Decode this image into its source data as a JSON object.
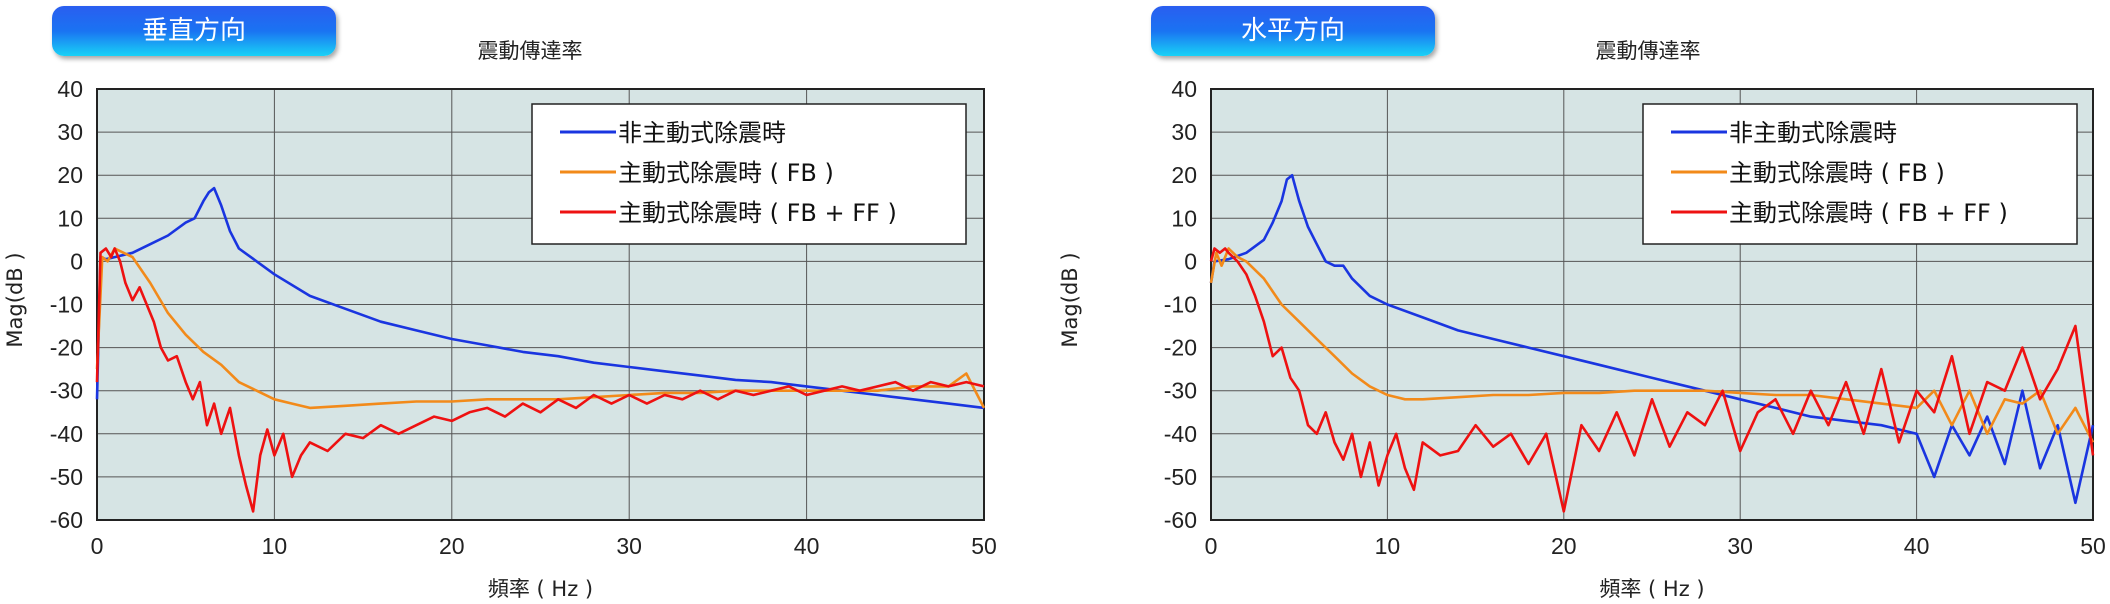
{
  "chart_data": [
    {
      "type": "line",
      "tag": "垂直方向",
      "title": "震動傳達率",
      "xlabel": "頻率 ( Hz )",
      "ylabel": "Mag(dB )",
      "xlim": [
        0,
        50
      ],
      "ylim": [
        -60,
        40
      ],
      "xticks": [
        "0",
        "10",
        "20",
        "30",
        "40",
        "50"
      ],
      "yticks": [
        "40",
        "30",
        "20",
        "10",
        "0",
        "-10",
        "-20",
        "-30",
        "-40",
        "-50",
        "-60"
      ],
      "grid": true,
      "legend_position": "top-right",
      "series": [
        {
          "name": "非主動式除震時",
          "color": "#1a35e0",
          "x": [
            0,
            0.2,
            0.5,
            1,
            2,
            3,
            4,
            5,
            5.5,
            6,
            6.3,
            6.6,
            7,
            7.5,
            8,
            9,
            10,
            12,
            14,
            16,
            18,
            20,
            22,
            24,
            26,
            28,
            30,
            32,
            34,
            36,
            38,
            40,
            42,
            44,
            46,
            48,
            50
          ],
          "y": [
            -32,
            1,
            0.5,
            1,
            2,
            4,
            6,
            9,
            10,
            14,
            16,
            17,
            13,
            7,
            3,
            0,
            -3,
            -8,
            -11,
            -14,
            -16,
            -18,
            -19.5,
            -21,
            -22,
            -23.5,
            -24.5,
            -25.5,
            -26.5,
            -27.5,
            -28,
            -29,
            -30,
            -31,
            -32,
            -33,
            -34
          ]
        },
        {
          "name": "主動式除震時 ( FB )",
          "color": "#f28a1a",
          "x": [
            0,
            0.3,
            0.6,
            1,
            1.5,
            2,
            3,
            4,
            5,
            6,
            7,
            8,
            9,
            10,
            11,
            12,
            14,
            16,
            18,
            20,
            22,
            24,
            26,
            28,
            30,
            32,
            34,
            36,
            38,
            40,
            42,
            44,
            46,
            48,
            49,
            50
          ],
          "y": [
            -25,
            1,
            0,
            3,
            2,
            1,
            -5,
            -12,
            -17,
            -21,
            -24,
            -28,
            -30,
            -32,
            -33,
            -34,
            -33.5,
            -33,
            -32.5,
            -32.5,
            -32,
            -32,
            -32,
            -31.5,
            -31,
            -30.5,
            -30.5,
            -30,
            -30,
            -30,
            -30,
            -30,
            -29,
            -29,
            -26,
            -34
          ]
        },
        {
          "name": "主動式除震時 ( FB + FF )",
          "color": "#ee1111",
          "x": [
            0,
            0.2,
            0.5,
            0.8,
            1,
            1.3,
            1.6,
            2,
            2.4,
            2.8,
            3.2,
            3.6,
            4,
            4.5,
            5,
            5.4,
            5.8,
            6.2,
            6.6,
            7,
            7.5,
            8,
            8.4,
            8.8,
            9.2,
            9.6,
            10,
            10.5,
            11,
            11.5,
            12,
            13,
            14,
            15,
            16,
            17,
            18,
            19,
            20,
            21,
            22,
            23,
            24,
            25,
            26,
            27,
            28,
            29,
            30,
            31,
            32,
            33,
            34,
            35,
            36,
            37,
            38,
            39,
            40,
            41,
            42,
            43,
            44,
            45,
            46,
            47,
            48,
            49,
            50
          ],
          "y": [
            -28,
            2,
            3,
            1,
            3,
            0,
            -5,
            -9,
            -6,
            -10,
            -14,
            -20,
            -23,
            -22,
            -28,
            -32,
            -28,
            -38,
            -33,
            -40,
            -34,
            -45,
            -52,
            -58,
            -45,
            -39,
            -45,
            -40,
            -50,
            -45,
            -42,
            -44,
            -40,
            -41,
            -38,
            -40,
            -38,
            -36,
            -37,
            -35,
            -34,
            -36,
            -33,
            -35,
            -32,
            -34,
            -31,
            -33,
            -31,
            -33,
            -31,
            -32,
            -30,
            -32,
            -30,
            -31,
            -30,
            -29,
            -31,
            -30,
            -29,
            -30,
            -29,
            -28,
            -30,
            -28,
            -29,
            -28,
            -29
          ]
        }
      ]
    },
    {
      "type": "line",
      "tag": "水平方向",
      "title": "震動傳達率",
      "xlabel": "頻率 ( Hz )",
      "ylabel": "Mag(dB )",
      "xlim": [
        0,
        50
      ],
      "ylim": [
        -60,
        40
      ],
      "xticks": [
        "0",
        "10",
        "20",
        "30",
        "40",
        "50"
      ],
      "yticks": [
        "40",
        "30",
        "20",
        "10",
        "0",
        "-10",
        "-20",
        "-30",
        "-40",
        "-50",
        "-60"
      ],
      "grid": true,
      "legend_position": "top-right",
      "series": [
        {
          "name": "非主動式除震時",
          "color": "#1a35e0",
          "x": [
            0,
            0.2,
            1,
            2,
            3,
            3.5,
            4,
            4.3,
            4.6,
            5,
            5.5,
            6,
            6.5,
            7,
            7.5,
            8,
            9,
            10,
            12,
            14,
            16,
            18,
            20,
            22,
            24,
            26,
            28,
            30,
            32,
            34,
            36,
            38,
            40,
            41,
            42,
            43,
            44,
            45,
            46,
            47,
            48,
            49,
            50
          ],
          "y": [
            -5,
            0,
            0.5,
            2,
            5,
            9,
            14,
            19,
            20,
            14,
            8,
            4,
            0,
            -1,
            -1,
            -4,
            -8,
            -10,
            -13,
            -16,
            -18,
            -20,
            -22,
            -24,
            -26,
            -28,
            -30,
            -32,
            -34,
            -36,
            -37,
            -38,
            -40,
            -50,
            -38,
            -45,
            -36,
            -47,
            -30,
            -48,
            -38,
            -56,
            -38
          ]
        },
        {
          "name": "主動式除震時 ( FB )",
          "color": "#f28a1a",
          "x": [
            0,
            0.3,
            0.6,
            1,
            1.5,
            2,
            3,
            4,
            5,
            6,
            7,
            8,
            9,
            10,
            11,
            12,
            14,
            16,
            18,
            20,
            22,
            24,
            26,
            28,
            30,
            32,
            34,
            36,
            38,
            40,
            41,
            42,
            43,
            44,
            45,
            46,
            47,
            48,
            49,
            50
          ],
          "y": [
            -5,
            2,
            -1,
            3,
            1,
            0,
            -4,
            -10,
            -14,
            -18,
            -22,
            -26,
            -29,
            -31,
            -32,
            -32,
            -31.5,
            -31,
            -31,
            -30.5,
            -30.5,
            -30,
            -30,
            -30,
            -30.5,
            -31,
            -31,
            -32,
            -33,
            -34,
            -30,
            -38,
            -30,
            -40,
            -32,
            -33,
            -30,
            -40,
            -34,
            -42
          ]
        },
        {
          "name": "主動式除震時 ( FB + FF )",
          "color": "#ee1111",
          "x": [
            0,
            0.2,
            0.5,
            0.8,
            1,
            1.5,
            2,
            2.5,
            3,
            3.5,
            4,
            4.5,
            5,
            5.5,
            6,
            6.5,
            7,
            7.5,
            8,
            8.5,
            9,
            9.5,
            10,
            10.5,
            11,
            11.5,
            12,
            13,
            14,
            15,
            16,
            17,
            18,
            19,
            20,
            21,
            22,
            23,
            24,
            25,
            26,
            27,
            28,
            29,
            30,
            31,
            32,
            33,
            34,
            35,
            36,
            37,
            38,
            39,
            40,
            41,
            42,
            43,
            44,
            45,
            46,
            47,
            48,
            49,
            50
          ],
          "y": [
            0,
            3,
            2,
            3,
            2,
            0,
            -3,
            -8,
            -14,
            -22,
            -20,
            -27,
            -30,
            -38,
            -40,
            -35,
            -42,
            -46,
            -40,
            -50,
            -42,
            -52,
            -45,
            -40,
            -48,
            -53,
            -42,
            -45,
            -44,
            -38,
            -43,
            -40,
            -47,
            -40,
            -58,
            -38,
            -44,
            -35,
            -45,
            -32,
            -43,
            -35,
            -38,
            -30,
            -44,
            -35,
            -32,
            -40,
            -30,
            -38,
            -28,
            -40,
            -25,
            -42,
            -30,
            -35,
            -22,
            -40,
            -28,
            -30,
            -20,
            -32,
            -25,
            -15,
            -45
          ]
        }
      ]
    }
  ]
}
